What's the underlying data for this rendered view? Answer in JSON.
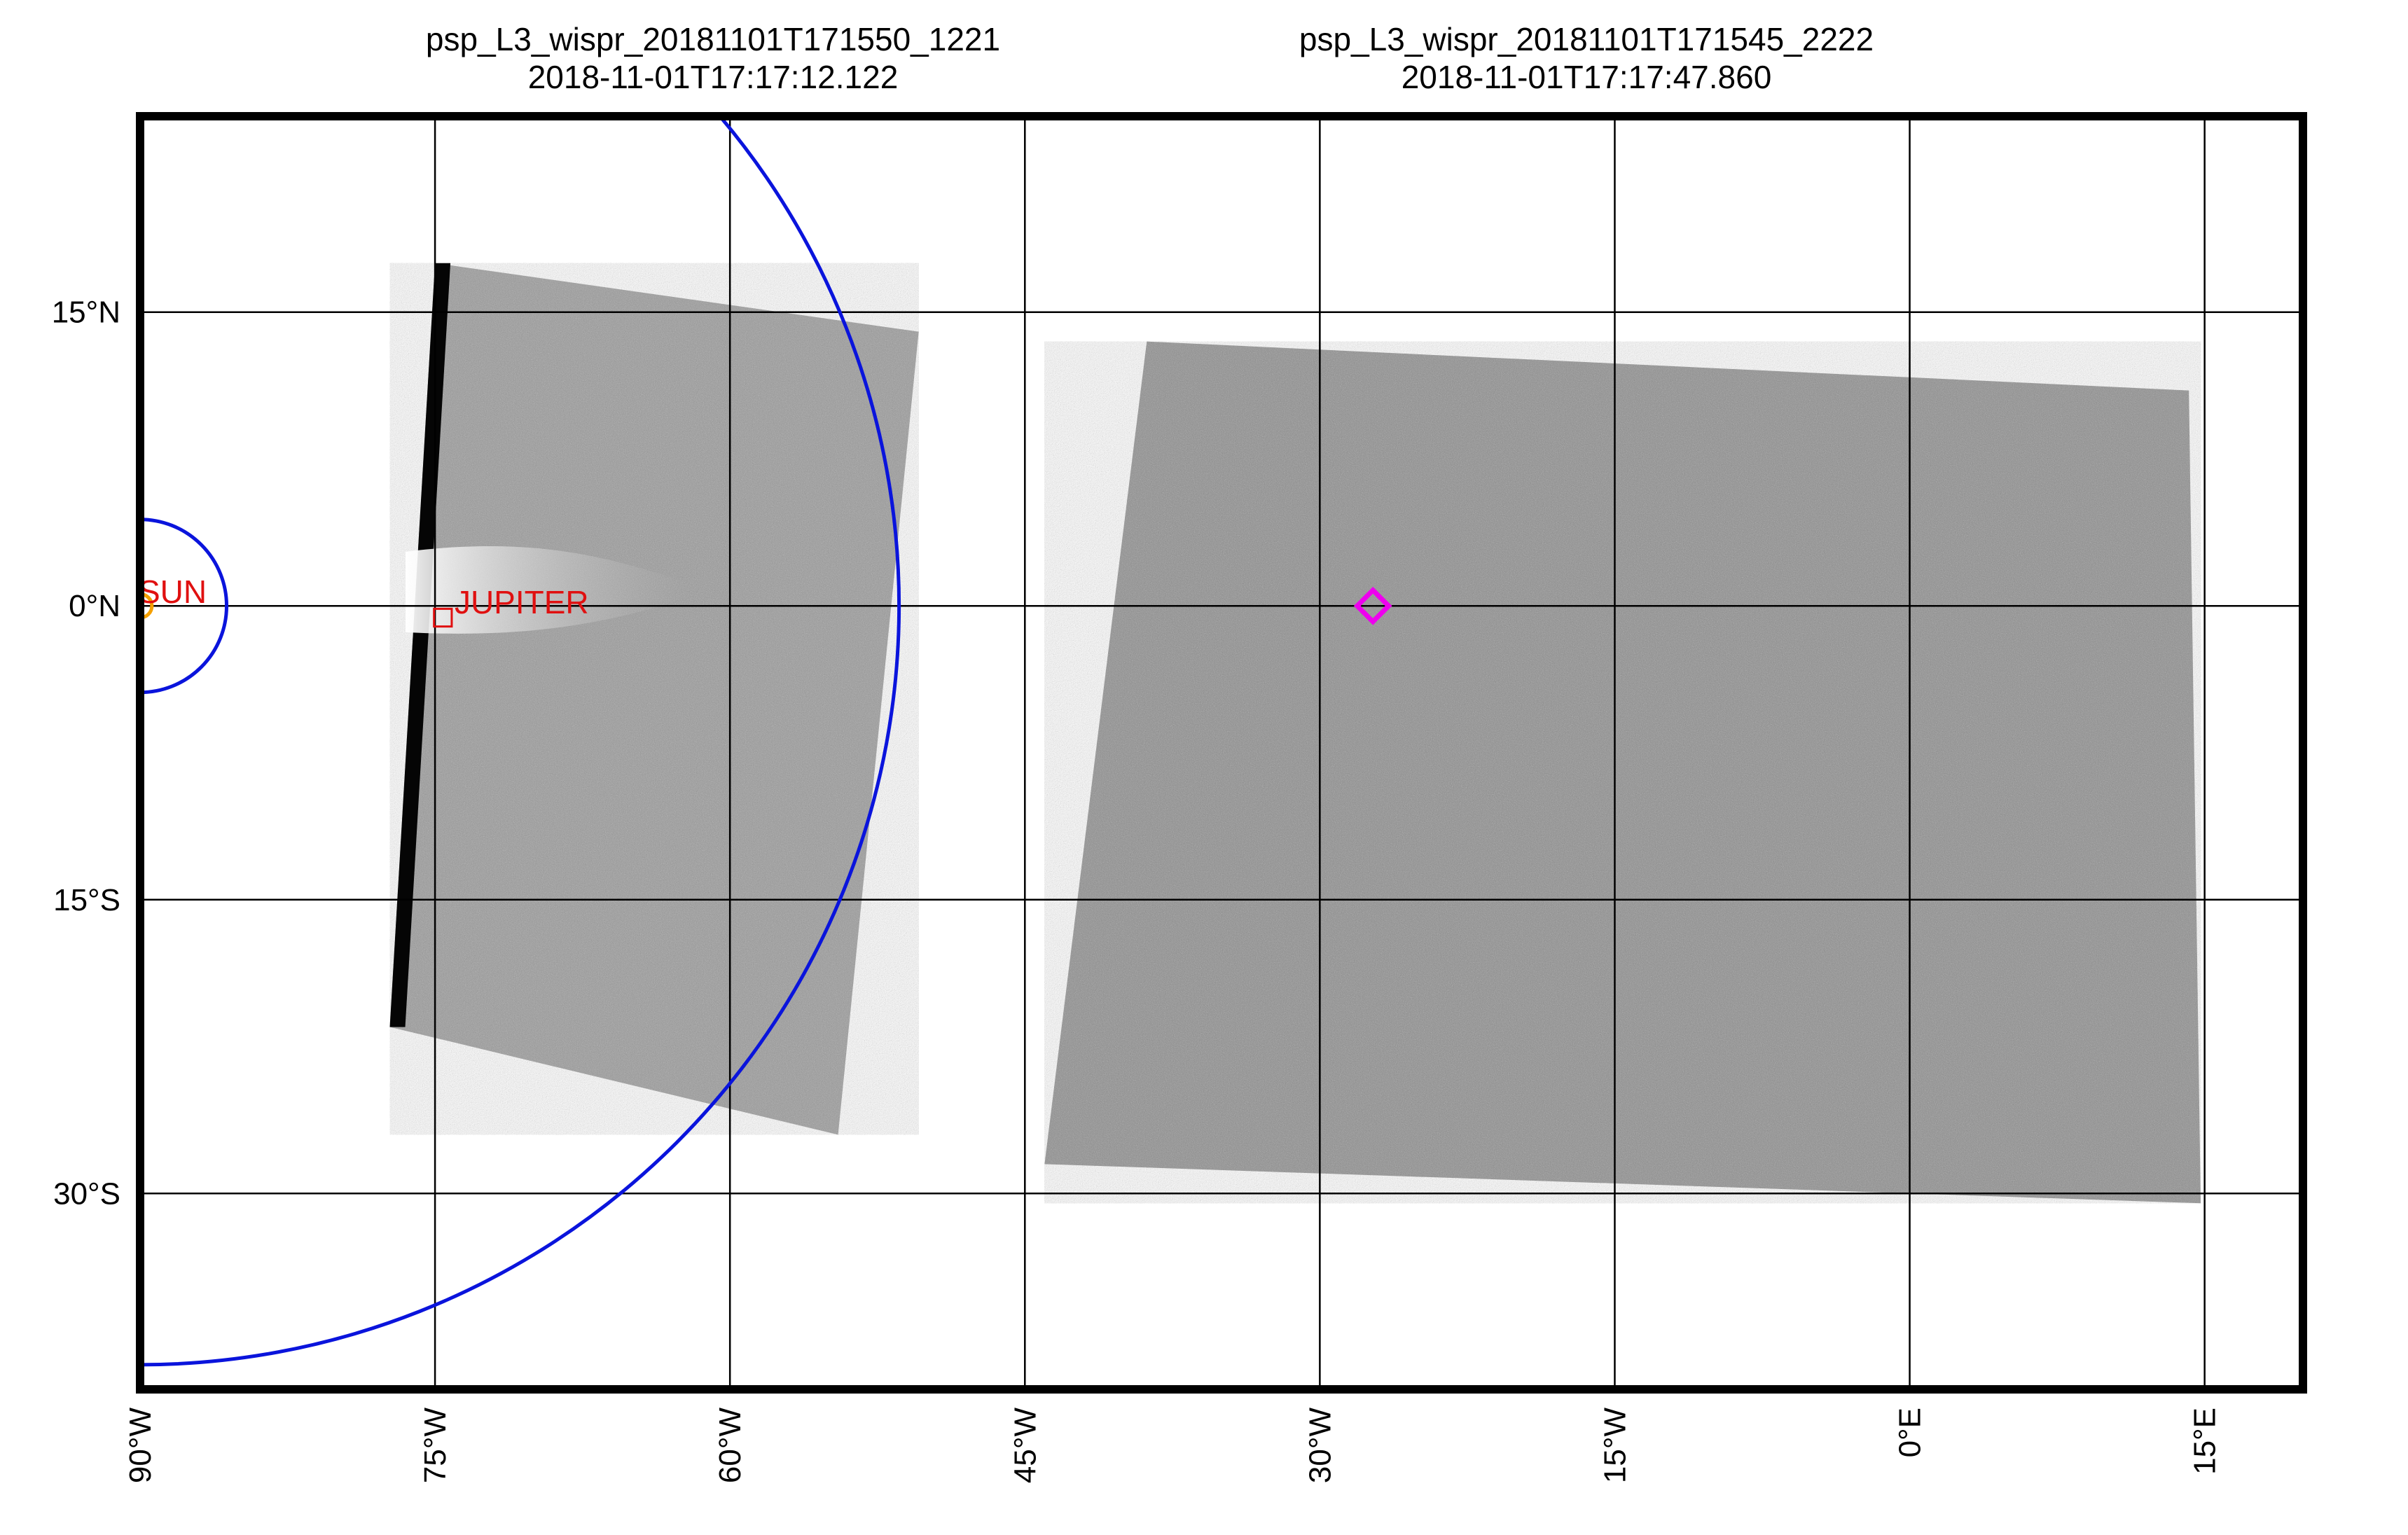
{
  "header": {
    "left": {
      "name": "psp_L3_wispr_20181101T171550_1221",
      "time": "2018-11-01T17:17:12.122"
    },
    "right": {
      "name": "psp_L3_wispr_20181101T171545_2222",
      "time": "2018-11-01T17:17:47.860"
    }
  },
  "chart_data": {
    "type": "image-map",
    "title": "",
    "xlabel": "",
    "ylabel": "",
    "xlim": [
      -90,
      20
    ],
    "ylim": [
      -40,
      25
    ],
    "grid": true,
    "x_ticks": [
      {
        "value": -90,
        "label": "90°W"
      },
      {
        "value": -75,
        "label": "75°W"
      },
      {
        "value": -60,
        "label": "60°W"
      },
      {
        "value": -45,
        "label": "45°W"
      },
      {
        "value": -30,
        "label": "30°W"
      },
      {
        "value": -15,
        "label": "15°W"
      },
      {
        "value": 0,
        "label": "0°E"
      },
      {
        "value": 15,
        "label": "15°E"
      }
    ],
    "y_ticks": [
      {
        "value": 15,
        "label": "15°N"
      },
      {
        "value": 0,
        "label": "0°N"
      },
      {
        "value": -15,
        "label": "15°S"
      },
      {
        "value": -30,
        "label": "30°S"
      }
    ],
    "images": [
      {
        "name": "psp_L3_wispr_20181101T171550_1221",
        "corners": [
          [
            -75,
            17.5
          ],
          [
            -50.4,
            14
          ],
          [
            -54.5,
            -27
          ],
          [
            -77.3,
            -21.5
          ]
        ],
        "tone": "#9a9a9a"
      },
      {
        "name": "psp_L3_wispr_20181101T171545_2222",
        "corners": [
          [
            -38.8,
            13.5
          ],
          [
            14.2,
            11
          ],
          [
            14.8,
            -30.5
          ],
          [
            -44,
            -28.5
          ]
        ],
        "tone": "#8e8e8e"
      }
    ],
    "markers": [
      {
        "label": "SUN",
        "x": -90,
        "y": 0,
        "color": "#f5a000",
        "shape": "circle",
        "size_deg": 1.2
      },
      {
        "label": "JUPITER",
        "x": -74.6,
        "y": -0.6,
        "color": "#e01010",
        "shape": "square",
        "size_deg": 0.9
      },
      {
        "label": "",
        "x": -27.3,
        "y": 0,
        "color": "#ee00ee",
        "shape": "diamond",
        "size_deg": 1.6
      }
    ],
    "circles": [
      {
        "cx": -90,
        "cy": 0,
        "r": 4.4,
        "color": "#0a14dc"
      },
      {
        "cx": -90,
        "cy": 0,
        "r": 38.6,
        "color": "#0a14dc"
      }
    ]
  }
}
